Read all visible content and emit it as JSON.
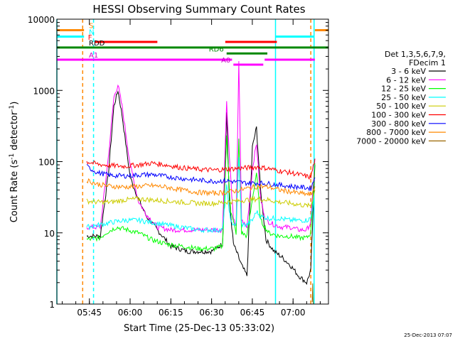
{
  "chart_data": {
    "type": "line",
    "title": "HESSI Observing Summary Count Rates",
    "xlabel": "Start Time (25-Dec-13 05:33:02)",
    "ylabel": "Count Rate (s",
    "ylabel_sup": "-1",
    "ylabel_tail": " detector",
    "ylabel_end": ")",
    "y_scale": "log",
    "x_unit": "minutes after 05:33:02",
    "xlim": [
      0,
      100
    ],
    "ylim": [
      1,
      10000
    ],
    "grid": false,
    "legend_position": "right",
    "y_ticks": [
      {
        "value": 1,
        "label": "1"
      },
      {
        "value": 10,
        "label": "10"
      },
      {
        "value": 100,
        "label": "100"
      },
      {
        "value": 1000,
        "label": "1000"
      },
      {
        "value": 10000,
        "label": "10000"
      }
    ],
    "x_ticks": [
      {
        "value": 11.97,
        "label": "05:45"
      },
      {
        "value": 26.97,
        "label": "06:00"
      },
      {
        "value": 41.97,
        "label": "06:15"
      },
      {
        "value": 56.97,
        "label": "06:30"
      },
      {
        "value": 71.97,
        "label": "06:45"
      },
      {
        "value": 86.97,
        "label": "07:00"
      }
    ],
    "legend_header": [
      "Det 1,3,5,6,7,9,",
      "FDecim 1"
    ],
    "series": [
      {
        "name": "3 - 6 keV",
        "color": "#000000",
        "x": [
          11,
          16,
          19,
          21,
          22.5,
          24,
          27,
          30,
          33,
          37,
          42,
          48,
          53,
          57,
          61,
          62.5,
          63.5,
          65,
          66.5,
          68,
          70,
          72,
          73.5,
          75,
          77,
          80,
          83,
          86,
          89,
          92,
          93.5,
          95
        ],
        "y": [
          9,
          9,
          70,
          600,
          1000,
          450,
          60,
          30,
          17,
          11,
          6.5,
          5.5,
          5.5,
          5.5,
          7,
          500,
          28,
          7,
          5,
          3.5,
          2.5,
          160,
          300,
          40,
          8,
          5.5,
          4.5,
          3.5,
          2.5,
          2,
          3,
          90
        ]
      },
      {
        "name": "6 - 12 keV",
        "color": "#ff00ff",
        "x": [
          11,
          16,
          19,
          21,
          22.5,
          24,
          27,
          30,
          33,
          37,
          42,
          48,
          53,
          57,
          61,
          62.5,
          63.5,
          65,
          66,
          67,
          68,
          70,
          72,
          73.5,
          75,
          77,
          80,
          83,
          86,
          89,
          92,
          93.5,
          95
        ],
        "y": [
          12,
          12,
          120,
          800,
          1200,
          600,
          90,
          28,
          18,
          12,
          11,
          11,
          11,
          11,
          11,
          700,
          120,
          15,
          13,
          2500,
          15,
          12,
          80,
          180,
          30,
          15,
          13,
          12,
          12,
          11,
          11,
          14,
          110
        ]
      },
      {
        "name": "12 - 25 keV",
        "color": "#00ff00",
        "x": [
          11,
          16,
          18,
          22,
          26,
          30,
          35,
          40,
          46,
          52,
          58,
          61,
          62.5,
          64,
          66,
          67,
          68,
          70,
          72,
          73.5,
          75,
          78,
          82,
          86,
          89,
          92,
          93.5,
          95
        ],
        "y": [
          8,
          8.5,
          10,
          12,
          11,
          10,
          8,
          7,
          6.5,
          6,
          6,
          6.5,
          220,
          20,
          10,
          200,
          10,
          9,
          30,
          70,
          15,
          10,
          9,
          9,
          8.5,
          8.5,
          10,
          95
        ]
      },
      {
        "name": "25 - 50 keV",
        "color": "#00ffff",
        "x": [
          11,
          16,
          20,
          25,
          30,
          35,
          40,
          46,
          52,
          58,
          61,
          62.5,
          64,
          66,
          67,
          68,
          70,
          72,
          73.5,
          75,
          78,
          82,
          86,
          89,
          92,
          93.5,
          95
        ],
        "y": [
          12,
          13,
          14,
          15,
          15,
          14,
          13,
          12,
          11,
          11,
          11,
          45,
          14,
          13,
          120,
          13,
          13,
          15,
          20,
          17,
          16,
          16,
          15,
          15,
          15,
          16,
          40
        ]
      },
      {
        "name": "50 - 100 keV",
        "color": "#cccc00",
        "x": [
          11,
          15,
          20,
          25,
          30,
          35,
          40,
          46,
          52,
          58,
          62,
          66,
          70,
          74,
          78,
          82,
          86,
          89,
          92,
          93.5,
          95
        ],
        "y": [
          28,
          27,
          27,
          29,
          30,
          29,
          28,
          27,
          26,
          26,
          27,
          28,
          29,
          30,
          29,
          27,
          26,
          25,
          24,
          24,
          40
        ]
      },
      {
        "name": "100 - 300 keV",
        "color": "#ff0000",
        "x": [
          11,
          15,
          20,
          25,
          30,
          35,
          40,
          46,
          52,
          58,
          62,
          66,
          70,
          74,
          78,
          82,
          86,
          89,
          92,
          93.5,
          95
        ],
        "y": [
          100,
          92,
          88,
          86,
          90,
          95,
          90,
          82,
          78,
          76,
          78,
          80,
          82,
          84,
          80,
          74,
          70,
          66,
          62,
          60,
          110
        ]
      },
      {
        "name": "300 - 800 keV",
        "color": "#0000ff",
        "x": [
          11,
          15,
          20,
          25,
          30,
          35,
          40,
          46,
          52,
          58,
          62,
          66,
          70,
          74,
          78,
          82,
          86,
          89,
          92,
          93.5,
          95
        ],
        "y": [
          85,
          70,
          64,
          63,
          65,
          66,
          62,
          58,
          55,
          53,
          54,
          52,
          50,
          50,
          49,
          47,
          45,
          44,
          43,
          42,
          60
        ]
      },
      {
        "name": "800 - 7000 keV",
        "color": "#ff8800",
        "x": [
          11,
          15,
          20,
          25,
          30,
          35,
          40,
          46,
          52,
          58,
          62,
          66,
          70,
          74,
          78,
          82,
          86,
          89,
          92,
          93.5,
          95
        ],
        "y": [
          55,
          48,
          45,
          44,
          45,
          46,
          44,
          40,
          37,
          36,
          37,
          39,
          42,
          45,
          44,
          40,
          38,
          36,
          35,
          34,
          45
        ]
      },
      {
        "name": "7000 - 20000 keV",
        "color": "#996600",
        "x": [
          94,
          94.2,
          94.4
        ],
        "y": [
          1,
          1.8,
          1
        ]
      }
    ],
    "flag_bars": [
      {
        "label": "S",
        "label_color": "#ff8800",
        "color": "#ff8800",
        "y": 7000,
        "segments": [
          [
            0,
            10
          ],
          [
            95,
            100
          ]
        ]
      },
      {
        "label": "N",
        "label_color": "#00ffff",
        "color": "#00ffff",
        "y": 5700,
        "segments": [
          [
            0,
            10
          ],
          [
            80.5,
            94.5
          ]
        ]
      },
      {
        "label": "F",
        "label_color": "#ff0000",
        "color": "#ff0000",
        "y": 4800,
        "segments": [
          [
            14,
            37
          ],
          [
            62,
            81
          ]
        ]
      },
      {
        "label": "RDD",
        "label_color": "#000000",
        "color": "#008800",
        "y": 4000,
        "segments": [
          [
            0,
            100
          ]
        ]
      },
      {
        "label": "RD6",
        "label_color": "#008800",
        "color": "#008800",
        "y": 3300,
        "segments": [
          [
            62.5,
            77.5
          ]
        ]
      },
      {
        "label": "A1",
        "label_color": "#cc00cc",
        "color": "#ff00ff",
        "y": 2700,
        "segments": [
          [
            0,
            64.5
          ],
          [
            76.5,
            95
          ]
        ]
      },
      {
        "label": "A0",
        "label_color": "#cc00cc",
        "color": "#ff00ff",
        "y": 2300,
        "segments": [
          [
            65,
            76
          ]
        ]
      }
    ],
    "vertical_lines": [
      {
        "x": 0,
        "color": "#00ffff",
        "style": "solid"
      },
      {
        "x": 9.5,
        "color": "#ff8800",
        "style": "dashed"
      },
      {
        "x": 13.5,
        "color": "#00ffff",
        "style": "dashed"
      },
      {
        "x": 80.5,
        "color": "#00ffff",
        "style": "solid"
      },
      {
        "x": 93.5,
        "color": "#ff8800",
        "style": "dashed"
      },
      {
        "x": 94.7,
        "color": "#00ffff",
        "style": "solid"
      }
    ],
    "timestamp": "25-Dec-2013 07:07"
  }
}
